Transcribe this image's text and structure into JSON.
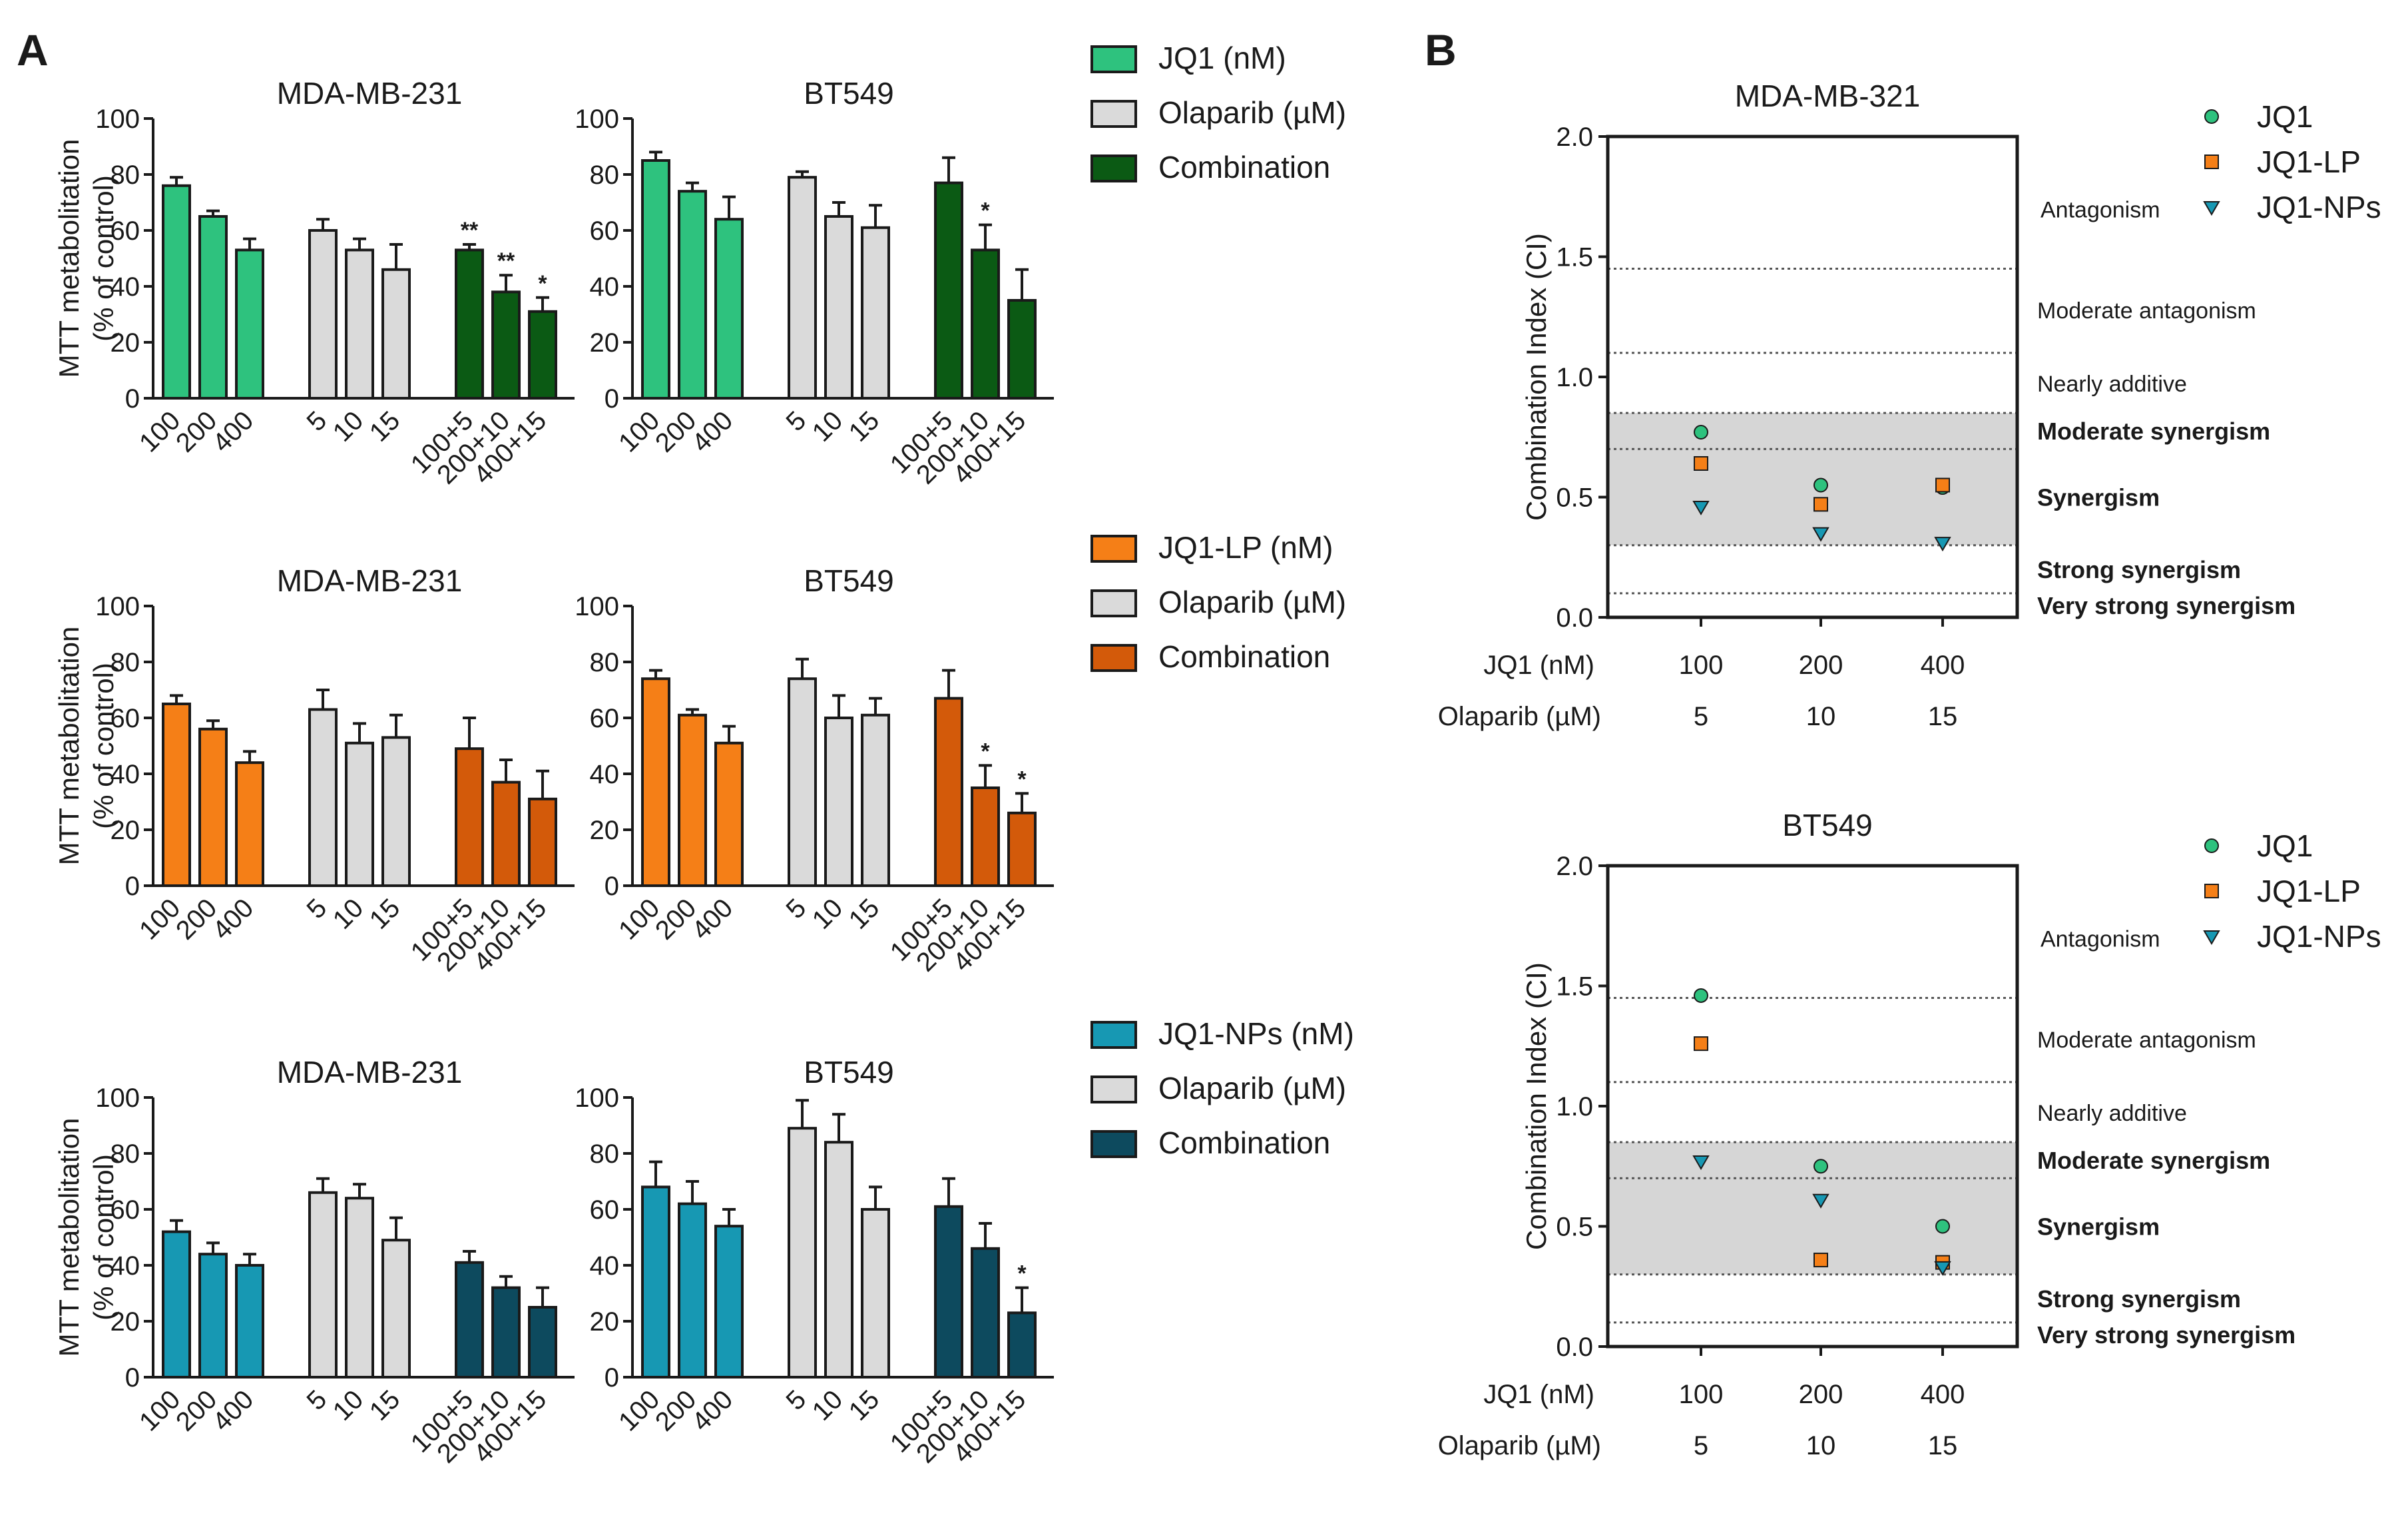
{
  "colors": {
    "jq1": "#2ec27e",
    "jq1_lp": "#f57f17",
    "jq1_nps": "#1798b3",
    "olaparib": "#dadada",
    "comb_jq1": "#0b5a14",
    "comb_lp": "#d35a0a",
    "comb_nps": "#0d4a5e",
    "shade": "#d6d6d6"
  },
  "panel_a": {
    "letter": "A",
    "ylabel_line1": "MTT metabolitation",
    "ylabel_line2": "(% of control)",
    "legends": [
      {
        "items": [
          {
            "label": "JQ1 (nM)",
            "color_key": "jq1"
          },
          {
            "label": "Olaparib (µM)",
            "color_key": "olaparib"
          },
          {
            "label": "Combination",
            "color_key": "comb_jq1"
          }
        ]
      },
      {
        "items": [
          {
            "label": "JQ1-LP (nM)",
            "color_key": "jq1_lp"
          },
          {
            "label": "Olaparib (µM)",
            "color_key": "olaparib"
          },
          {
            "label": "Combination",
            "color_key": "comb_lp"
          }
        ]
      },
      {
        "items": [
          {
            "label": "JQ1-NPs (nM)",
            "color_key": "jq1_nps"
          },
          {
            "label": "Olaparib (µM)",
            "color_key": "olaparib"
          },
          {
            "label": "Combination",
            "color_key": "comb_nps"
          }
        ]
      }
    ]
  },
  "panel_b": {
    "letter": "B",
    "ylabel": "Combination Index (CI)",
    "row_label_1": "JQ1 (nM)",
    "row_label_2": "Olaparib (µM)",
    "jq1_values": [
      "100",
      "200",
      "400"
    ],
    "olaparib_values": [
      "5",
      "10",
      "15"
    ],
    "regions": [
      {
        "label": "Antagonism",
        "bold": false
      },
      {
        "label": "Moderate antagonism",
        "bold": false
      },
      {
        "label": "Nearly additive",
        "bold": false
      },
      {
        "label": "Moderate synergism",
        "bold": true
      },
      {
        "label": "Synergism",
        "bold": true
      },
      {
        "label": "Strong synergism",
        "bold": true
      },
      {
        "label": "Very strong synergism",
        "bold": true
      }
    ],
    "legend": [
      "JQ1",
      "JQ1-LP",
      "JQ1-NPs"
    ]
  },
  "chart_data": [
    {
      "type": "bar",
      "title": "MDA-MB-231",
      "ylabel": "MTT metabolitation (% of control)",
      "ylim": [
        0,
        100
      ],
      "yticks": [
        "0",
        "20",
        "40",
        "60",
        "80",
        "100"
      ],
      "categories": [
        "100",
        "200",
        "400",
        "5",
        "10",
        "15",
        "100+5",
        "200+10",
        "400+15"
      ],
      "values": [
        76,
        65,
        53,
        60,
        53,
        46,
        53,
        38,
        31
      ],
      "errors": [
        3,
        2,
        4,
        4,
        4,
        9,
        2,
        6,
        5
      ],
      "annotations": [
        "",
        "",
        "",
        "",
        "",
        "",
        "**",
        "**",
        "*"
      ],
      "groups": [
        "jq1",
        "jq1",
        "jq1",
        "olaparib",
        "olaparib",
        "olaparib",
        "comb_jq1",
        "comb_jq1",
        "comb_jq1"
      ]
    },
    {
      "type": "bar",
      "title": "BT549",
      "ylabel": "MTT metabolitation (% of control)",
      "ylim": [
        0,
        100
      ],
      "yticks": [
        "0",
        "20",
        "40",
        "60",
        "80",
        "100"
      ],
      "categories": [
        "100",
        "200",
        "400",
        "5",
        "10",
        "15",
        "100+5",
        "200+10",
        "400+15"
      ],
      "values": [
        85,
        74,
        64,
        79,
        65,
        61,
        77,
        53,
        35
      ],
      "errors": [
        3,
        3,
        8,
        2,
        5,
        8,
        9,
        9,
        11
      ],
      "annotations": [
        "",
        "",
        "",
        "",
        "",
        "",
        "",
        "*",
        ""
      ],
      "groups": [
        "jq1",
        "jq1",
        "jq1",
        "olaparib",
        "olaparib",
        "olaparib",
        "comb_jq1",
        "comb_jq1",
        "comb_jq1"
      ]
    },
    {
      "type": "bar",
      "title": "MDA-MB-231",
      "ylabel": "MTT metabolitation (% of control)",
      "ylim": [
        0,
        100
      ],
      "yticks": [
        "0",
        "20",
        "40",
        "60",
        "80",
        "100"
      ],
      "categories": [
        "100",
        "200",
        "400",
        "5",
        "10",
        "15",
        "100+5",
        "200+10",
        "400+15"
      ],
      "values": [
        65,
        56,
        44,
        63,
        51,
        53,
        49,
        37,
        31
      ],
      "errors": [
        3,
        3,
        4,
        7,
        7,
        8,
        11,
        8,
        10
      ],
      "annotations": [
        "",
        "",
        "",
        "",
        "",
        "",
        "",
        "",
        ""
      ],
      "groups": [
        "jq1_lp",
        "jq1_lp",
        "jq1_lp",
        "olaparib",
        "olaparib",
        "olaparib",
        "comb_lp",
        "comb_lp",
        "comb_lp"
      ]
    },
    {
      "type": "bar",
      "title": "BT549",
      "ylabel": "MTT metabolitation (% of control)",
      "ylim": [
        0,
        100
      ],
      "yticks": [
        "0",
        "20",
        "40",
        "60",
        "80",
        "100"
      ],
      "categories": [
        "100",
        "200",
        "400",
        "5",
        "10",
        "15",
        "100+5",
        "200+10",
        "400+15"
      ],
      "values": [
        74,
        61,
        51,
        74,
        60,
        61,
        67,
        35,
        26
      ],
      "errors": [
        3,
        2,
        6,
        7,
        8,
        6,
        10,
        8,
        7
      ],
      "annotations": [
        "",
        "",
        "",
        "",
        "",
        "",
        "",
        "*",
        "*"
      ],
      "groups": [
        "jq1_lp",
        "jq1_lp",
        "jq1_lp",
        "olaparib",
        "olaparib",
        "olaparib",
        "comb_lp",
        "comb_lp",
        "comb_lp"
      ]
    },
    {
      "type": "bar",
      "title": "MDA-MB-231",
      "ylabel": "MTT metabolitation (% of control)",
      "ylim": [
        0,
        100
      ],
      "yticks": [
        "0",
        "20",
        "40",
        "60",
        "80",
        "100"
      ],
      "categories": [
        "100",
        "200",
        "400",
        "5",
        "10",
        "15",
        "100+5",
        "200+10",
        "400+15"
      ],
      "values": [
        52,
        44,
        40,
        66,
        64,
        49,
        41,
        32,
        25
      ],
      "errors": [
        4,
        4,
        4,
        5,
        5,
        8,
        4,
        4,
        7
      ],
      "annotations": [
        "",
        "",
        "",
        "",
        "",
        "",
        "",
        "",
        ""
      ],
      "groups": [
        "jq1_nps",
        "jq1_nps",
        "jq1_nps",
        "olaparib",
        "olaparib",
        "olaparib",
        "comb_nps",
        "comb_nps",
        "comb_nps"
      ]
    },
    {
      "type": "bar",
      "title": "BT549",
      "ylabel": "MTT metabolitation (% of control)",
      "ylim": [
        0,
        100
      ],
      "yticks": [
        "0",
        "20",
        "40",
        "60",
        "80",
        "100"
      ],
      "categories": [
        "100",
        "200",
        "400",
        "5",
        "10",
        "15",
        "100+5",
        "200+10",
        "400+15"
      ],
      "values": [
        68,
        62,
        54,
        89,
        84,
        60,
        61,
        46,
        23
      ],
      "errors": [
        9,
        8,
        6,
        10,
        10,
        8,
        10,
        9,
        9
      ],
      "annotations": [
        "",
        "",
        "",
        "",
        "",
        "",
        "",
        "",
        "*"
      ],
      "groups": [
        "jq1_nps",
        "jq1_nps",
        "jq1_nps",
        "olaparib",
        "olaparib",
        "olaparib",
        "comb_nps",
        "comb_nps",
        "comb_nps"
      ]
    },
    {
      "type": "scatter",
      "title": "MDA-MB-321",
      "ylabel": "Combination Index (CI)",
      "ylim": [
        0,
        2.0
      ],
      "yticks": [
        "0.0",
        "0.5",
        "1.0",
        "1.5",
        "2.0"
      ],
      "x": [
        "100 / 5",
        "200 / 10",
        "400 / 15"
      ],
      "thresholds": [
        0.1,
        0.3,
        0.7,
        0.85,
        1.1,
        1.45
      ],
      "shaded_range": [
        0.3,
        0.85
      ],
      "series": [
        {
          "name": "JQ1",
          "values": [
            0.77,
            0.55,
            0.54
          ],
          "marker": "circle",
          "color_key": "jq1"
        },
        {
          "name": "JQ1-LP",
          "values": [
            0.64,
            0.47,
            0.55
          ],
          "marker": "square",
          "color_key": "jq1_lp"
        },
        {
          "name": "JQ1-NPs",
          "values": [
            0.46,
            0.35,
            0.31
          ],
          "marker": "triangle",
          "color_key": "jq1_nps"
        }
      ]
    },
    {
      "type": "scatter",
      "title": "BT549",
      "ylabel": "Combination Index (CI)",
      "ylim": [
        0,
        2.0
      ],
      "yticks": [
        "0.0",
        "0.5",
        "1.0",
        "1.5",
        "2.0"
      ],
      "x": [
        "100 / 5",
        "200 / 10",
        "400 / 15"
      ],
      "thresholds": [
        0.1,
        0.3,
        0.7,
        0.85,
        1.1,
        1.45
      ],
      "shaded_range": [
        0.3,
        0.85
      ],
      "series": [
        {
          "name": "JQ1",
          "values": [
            1.46,
            0.75,
            0.5
          ],
          "marker": "circle",
          "color_key": "jq1"
        },
        {
          "name": "JQ1-LP",
          "values": [
            1.26,
            0.36,
            0.35
          ],
          "marker": "square",
          "color_key": "jq1_lp"
        },
        {
          "name": "JQ1-NPs",
          "values": [
            0.77,
            0.61,
            0.33
          ],
          "marker": "triangle",
          "color_key": "jq1_nps"
        }
      ]
    }
  ]
}
